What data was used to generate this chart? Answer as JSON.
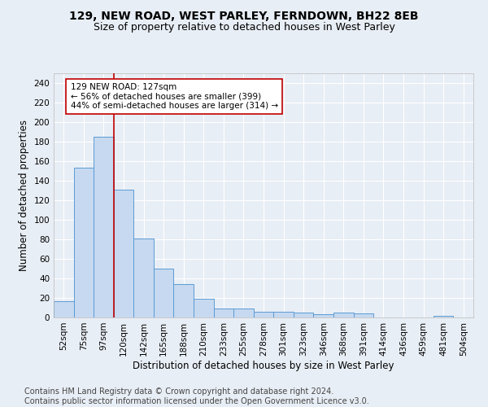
{
  "title": "129, NEW ROAD, WEST PARLEY, FERNDOWN, BH22 8EB",
  "subtitle": "Size of property relative to detached houses in West Parley",
  "xlabel": "Distribution of detached houses by size in West Parley",
  "ylabel": "Number of detached properties",
  "categories": [
    "52sqm",
    "75sqm",
    "97sqm",
    "120sqm",
    "142sqm",
    "165sqm",
    "188sqm",
    "210sqm",
    "233sqm",
    "255sqm",
    "278sqm",
    "301sqm",
    "323sqm",
    "346sqm",
    "368sqm",
    "391sqm",
    "414sqm",
    "436sqm",
    "459sqm",
    "481sqm",
    "504sqm"
  ],
  "values": [
    17,
    153,
    185,
    131,
    81,
    50,
    34,
    19,
    9,
    9,
    6,
    6,
    5,
    3,
    5,
    4,
    0,
    0,
    0,
    2,
    0
  ],
  "bar_color": "#c6d9f0",
  "bar_edge_color": "#5b9bd5",
  "vline_x_index": 2.5,
  "vline_color": "#c00000",
  "annotation_text": "129 NEW ROAD: 127sqm\n← 56% of detached houses are smaller (399)\n44% of semi-detached houses are larger (314) →",
  "annotation_box_color": "#ffffff",
  "annotation_box_edge_color": "#c00000",
  "ylim": [
    0,
    250
  ],
  "yticks": [
    0,
    20,
    40,
    60,
    80,
    100,
    120,
    140,
    160,
    180,
    200,
    220,
    240
  ],
  "footer": "Contains HM Land Registry data © Crown copyright and database right 2024.\nContains public sector information licensed under the Open Government Licence v3.0.",
  "bg_color": "#e8eef5",
  "grid_color": "#ffffff",
  "title_fontsize": 10,
  "subtitle_fontsize": 9,
  "axis_label_fontsize": 8.5,
  "tick_fontsize": 7.5,
  "footer_fontsize": 7
}
